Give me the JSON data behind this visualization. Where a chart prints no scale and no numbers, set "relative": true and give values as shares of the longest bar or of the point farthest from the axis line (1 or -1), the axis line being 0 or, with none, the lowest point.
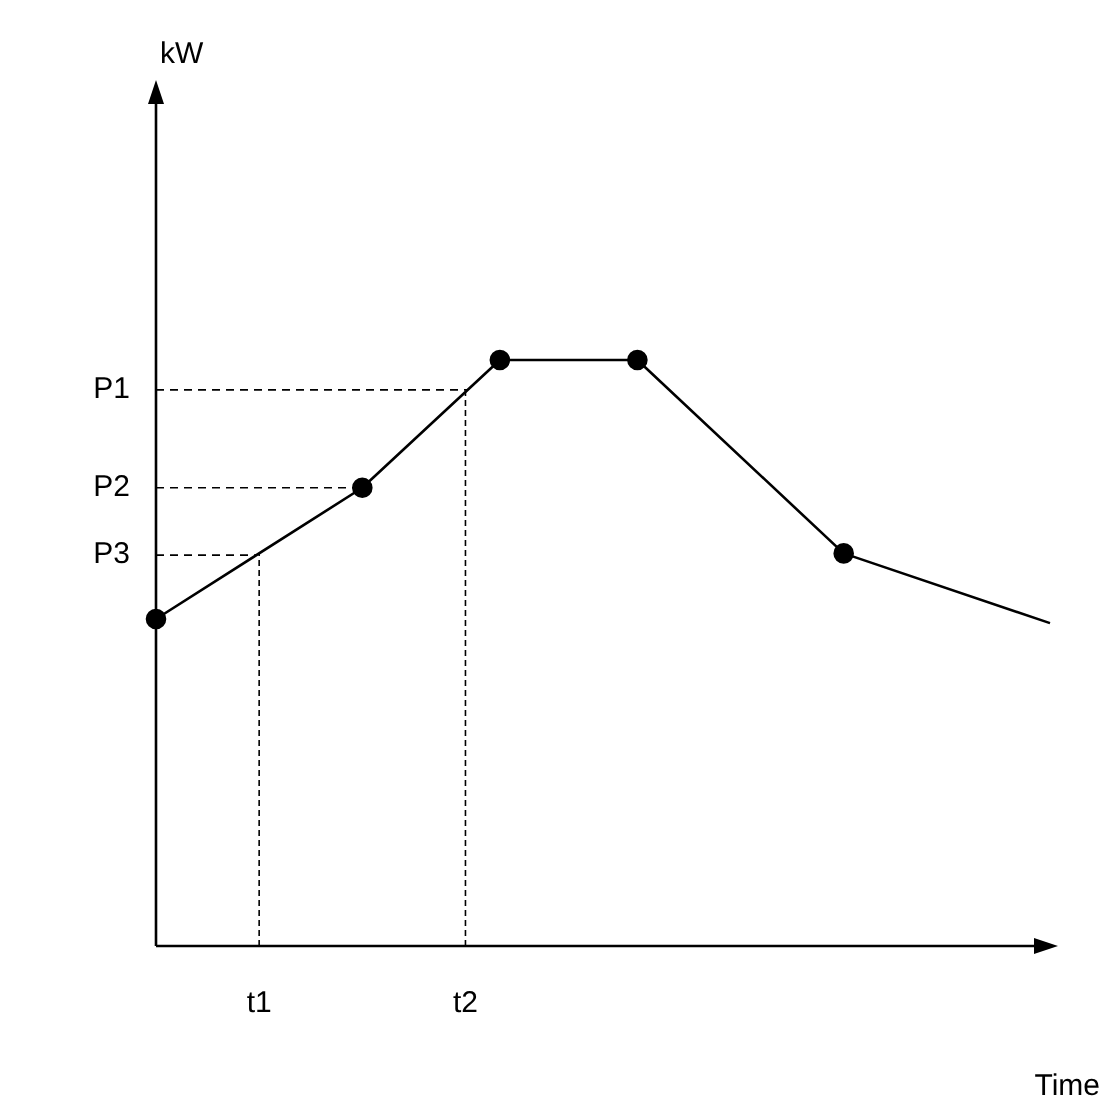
{
  "chart_data": {
    "type": "line",
    "xlabel": "Time",
    "annotations": [
      "kW"
    ],
    "relative": true,
    "categories": [
      null,
      null,
      null,
      "t1",
      null,
      null,
      null,
      null,
      null,
      "t2",
      null,
      null,
      null,
      null,
      null,
      null,
      null,
      null,
      null,
      null,
      null,
      null,
      null,
      null,
      null,
      null,
      null
    ],
    "series": [
      {
        "color": "#000000",
        "marker": "none",
        "values": [
          0.558,
          null,
          null,
          null,
          null,
          null,
          0.782,
          null,
          null,
          null,
          1,
          null,
          null,
          null,
          1,
          null,
          null,
          null,
          null,
          null,
          0.67,
          null,
          null,
          null,
          null,
          null,
          0.551
        ]
      },
      {
        "type": "scatter",
        "color": "#000000",
        "marker": "circle",
        "values": [
          0.558,
          null,
          null,
          null,
          null,
          null,
          0.782,
          null,
          null,
          null,
          1,
          null,
          null,
          null,
          1,
          null,
          null,
          null,
          null,
          null,
          0.67,
          null,
          null,
          null,
          null,
          null,
          null
        ]
      }
    ],
    "ref_lines": [
      {
        "axis": "y",
        "value": 0.949,
        "label": "P1",
        "line_style": "dashed"
      },
      {
        "axis": "y",
        "value": 0.782,
        "label": "P2",
        "line_style": "dashed"
      },
      {
        "axis": "y",
        "value": 0.667,
        "label": "P3",
        "line_style": "dashed"
      }
    ],
    "grid": "x",
    "legend": false
  }
}
